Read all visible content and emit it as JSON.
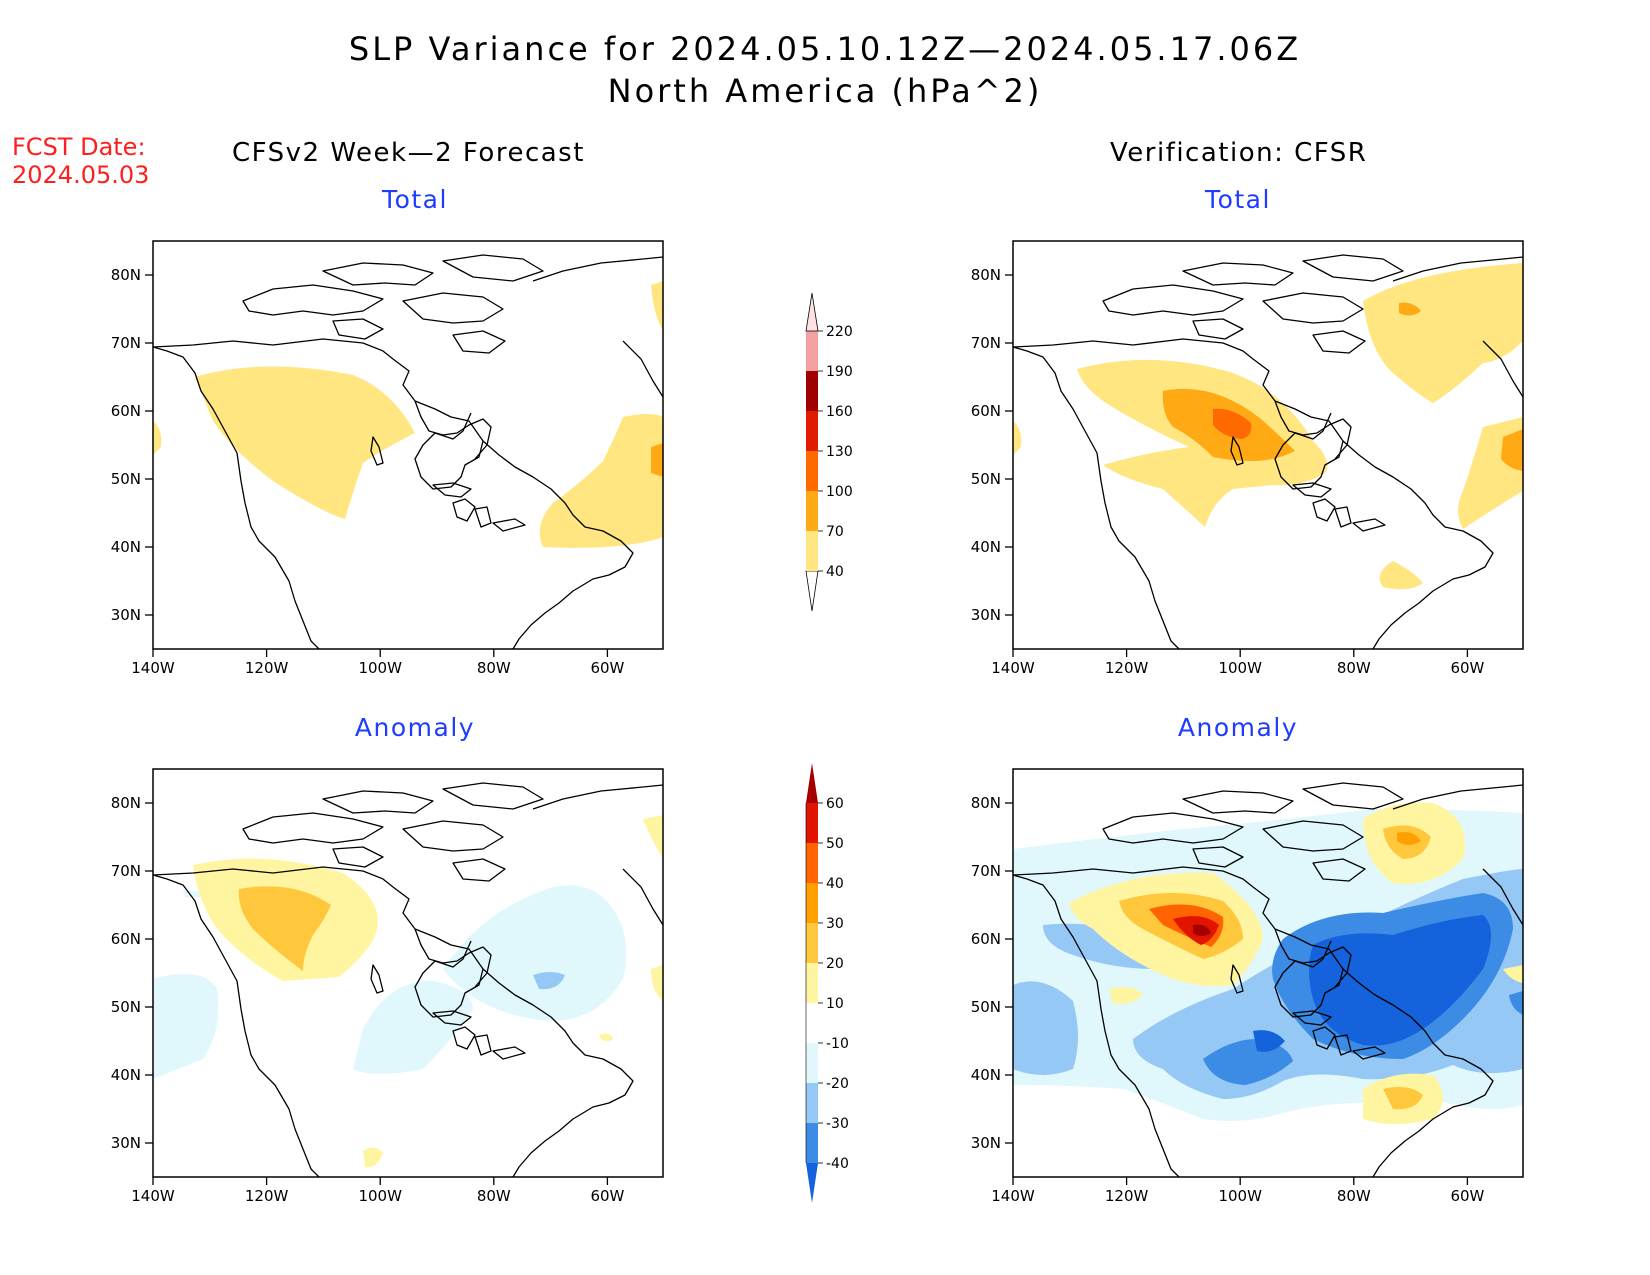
{
  "header": {
    "title_line1": "SLP Variance for 2024.05.10.12Z—2024.05.17.06Z",
    "title_line2": "North America (hPa^2)",
    "fcst_date_label": "FCST Date:",
    "fcst_date_value": "2024.05.03",
    "left_column_title": "CFSv2 Week—2 Forecast",
    "right_column_title": "Verification: CFSR"
  },
  "panels": [
    {
      "id": "forecast-total",
      "subtitle": "Total"
    },
    {
      "id": "verification-total",
      "subtitle": "Total"
    },
    {
      "id": "forecast-anomaly",
      "subtitle": "Anomaly"
    },
    {
      "id": "verification-anomaly",
      "subtitle": "Anomaly"
    }
  ],
  "axes": {
    "lon_ticks": [
      "140W",
      "120W",
      "100W",
      "80W",
      "60W"
    ],
    "lat_ticks": [
      "30N",
      "40N",
      "50N",
      "60N",
      "70N",
      "80N"
    ]
  },
  "colorbars": {
    "total": {
      "levels": [
        "40",
        "70",
        "100",
        "130",
        "160",
        "190",
        "220"
      ],
      "colors": [
        "#ffe680",
        "#ffaa14",
        "#ff6a00",
        "#e01b00",
        "#a00000",
        "#f2a0a0",
        "#fde2e2"
      ]
    },
    "anomaly": {
      "levels": [
        "-40",
        "-30",
        "-20",
        "-10",
        "10",
        "20",
        "30",
        "40",
        "50",
        "60"
      ],
      "colors": [
        "#1462dc",
        "#3c8ce6",
        "#96c8f5",
        "#e0f8fc",
        "#ffffff",
        "#fff5a0",
        "#ffc83c",
        "#ffa000",
        "#ff6400",
        "#e11400",
        "#a50000"
      ]
    }
  }
}
